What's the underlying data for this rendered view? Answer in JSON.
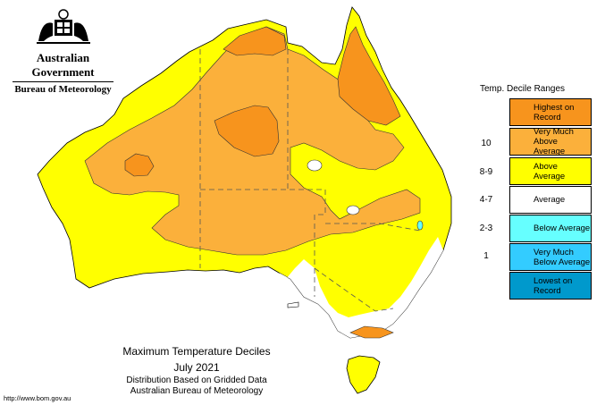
{
  "header": {
    "government": "Australian Government",
    "bureau": "Bureau of Meteorology"
  },
  "legend": {
    "title": "Temp. Decile Ranges",
    "items": [
      {
        "label": "Highest on Record",
        "key": "",
        "color": "#f7941d"
      },
      {
        "label": "Very Much Above Average",
        "key": "10",
        "color": "#fbb03b"
      },
      {
        "label": "Above Average",
        "key": "8-9",
        "color": "#ffff00"
      },
      {
        "label": "Average",
        "key": "4-7",
        "color": "#ffffff"
      },
      {
        "label": "Below Average",
        "key": "2-3",
        "color": "#66ffff"
      },
      {
        "label": "Very Much Below Average",
        "key": "1",
        "color": "#33ccff"
      },
      {
        "label": "Lowest on Record",
        "key": "",
        "color": "#0099cc"
      }
    ]
  },
  "caption": {
    "title": "Maximum Temperature Deciles",
    "date": "July 2021",
    "subtitle1": "Distribution Based on Gridded Data",
    "subtitle2": "Australian Bureau of Meteorology"
  },
  "footer": {
    "url": "http://www.bom.gov.au"
  }
}
